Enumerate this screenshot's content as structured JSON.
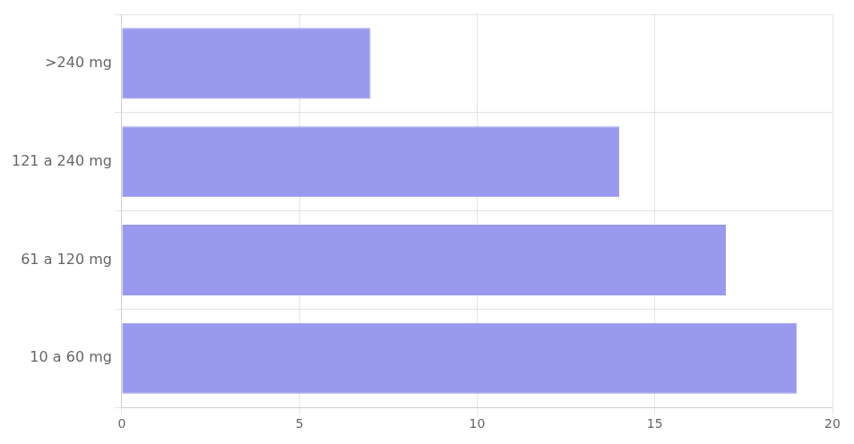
{
  "chart_data": {
    "type": "bar",
    "orientation": "horizontal",
    "categories": [
      ">240 mg",
      "121 a 240 mg",
      "61 a 120 mg",
      "10 a 60 mg"
    ],
    "values": [
      7,
      14,
      17,
      19
    ],
    "color": "#9999EE",
    "xlim": [
      0,
      20
    ],
    "xticks": [
      0,
      5,
      10,
      15,
      20
    ],
    "grid": true
  }
}
